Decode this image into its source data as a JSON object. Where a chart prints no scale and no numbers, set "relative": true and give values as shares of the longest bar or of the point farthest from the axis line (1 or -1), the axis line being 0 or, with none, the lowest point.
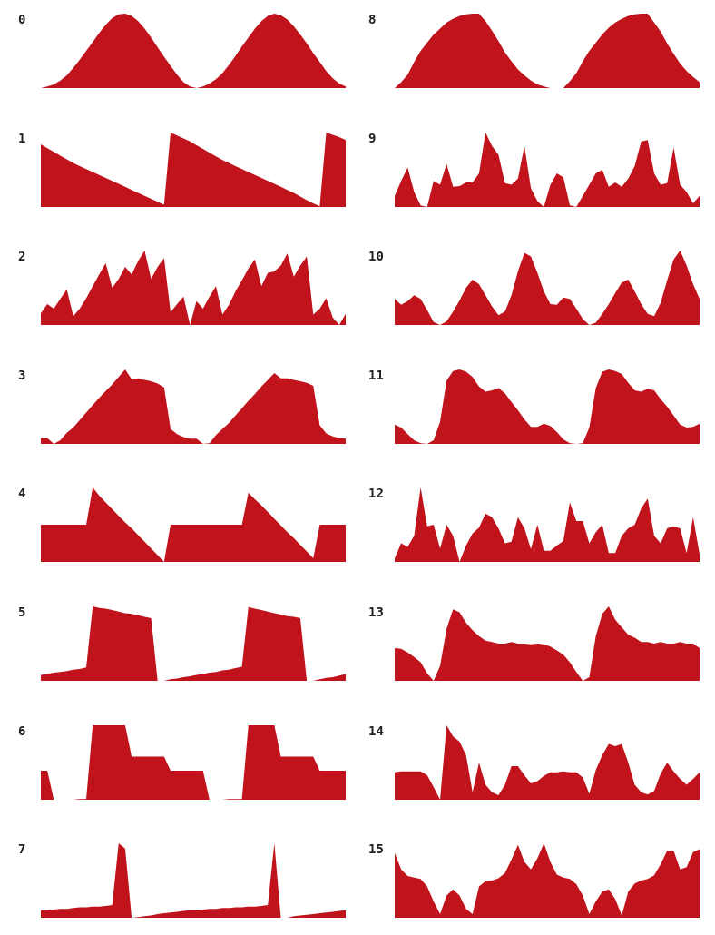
{
  "chart_data": [
    {
      "type": "area",
      "title": "0",
      "relative": true,
      "color": "#c0131c",
      "categories": [
        null,
        null,
        null,
        null,
        null,
        null,
        null,
        null,
        null,
        null,
        null,
        null,
        null,
        null,
        null,
        null,
        null,
        null,
        null,
        null,
        null,
        null,
        null,
        null,
        null,
        null,
        null,
        null,
        null,
        null,
        null,
        null,
        null,
        null,
        null,
        null,
        null,
        null,
        null,
        null,
        null,
        null,
        null,
        null,
        null,
        null,
        null,
        null
      ],
      "values": [
        0,
        0.02,
        0.05,
        0.1,
        0.17,
        0.27,
        0.38,
        0.5,
        0.62,
        0.74,
        0.85,
        0.94,
        0.99,
        1,
        0.97,
        0.9,
        0.8,
        0.68,
        0.55,
        0.42,
        0.3,
        0.18,
        0.08,
        0.02,
        0,
        0.02,
        0.06,
        0.12,
        0.2,
        0.31,
        0.43,
        0.56,
        0.68,
        0.8,
        0.9,
        0.97,
        1,
        0.98,
        0.92,
        0.83,
        0.72,
        0.6,
        0.47,
        0.35,
        0.23,
        0.13,
        0.06,
        0.02
      ]
    },
    {
      "type": "area",
      "title": "1",
      "relative": true,
      "color": "#c0131c",
      "categories": [
        null,
        null,
        null,
        null,
        null,
        null,
        null,
        null,
        null,
        null,
        null,
        null,
        null,
        null,
        null,
        null,
        null,
        null,
        null,
        null,
        null,
        null,
        null,
        null,
        null,
        null,
        null,
        null,
        null,
        null,
        null,
        null,
        null,
        null,
        null,
        null,
        null,
        null,
        null,
        null,
        null,
        null,
        null,
        null,
        null,
        null,
        null,
        null
      ],
      "values": [
        0.84,
        0.79,
        0.74,
        0.69,
        0.64,
        0.59,
        0.55,
        0.51,
        0.47,
        0.43,
        0.39,
        0.35,
        0.31,
        0.27,
        0.23,
        0.19,
        0.15,
        0.11,
        0.07,
        0.03,
        1,
        0.96,
        0.92,
        0.88,
        0.83,
        0.78,
        0.73,
        0.68,
        0.63,
        0.59,
        0.55,
        0.51,
        0.47,
        0.43,
        0.39,
        0.35,
        0.31,
        0.27,
        0.23,
        0.19,
        0.14,
        0.09,
        0.05,
        0.01,
        1,
        0.97,
        0.94,
        0.9
      ]
    },
    {
      "type": "area",
      "title": "2",
      "relative": true,
      "color": "#c0131c",
      "categories": [
        null,
        null,
        null,
        null,
        null,
        null,
        null,
        null,
        null,
        null,
        null,
        null,
        null,
        null,
        null,
        null,
        null,
        null,
        null,
        null,
        null,
        null,
        null,
        null,
        null,
        null,
        null,
        null,
        null,
        null,
        null,
        null,
        null,
        null,
        null,
        null,
        null,
        null,
        null,
        null,
        null,
        null,
        null,
        null,
        null,
        null,
        null,
        null
      ],
      "values": [
        0.16,
        0.28,
        0.22,
        0.35,
        0.48,
        0.12,
        0.22,
        0.36,
        0.52,
        0.68,
        0.83,
        0.5,
        0.62,
        0.78,
        0.68,
        0.86,
        1,
        0.62,
        0.78,
        0.9,
        0.17,
        0.28,
        0.38,
        0,
        0.32,
        0.22,
        0.38,
        0.52,
        0.14,
        0.27,
        0.45,
        0.6,
        0.76,
        0.88,
        0.52,
        0.7,
        0.72,
        0.8,
        0.96,
        0.65,
        0.8,
        0.92,
        0.14,
        0.22,
        0.36,
        0.1,
        0,
        0.15
      ]
    },
    {
      "type": "area",
      "title": "3",
      "relative": true,
      "color": "#c0131c",
      "categories": [
        null,
        null,
        null,
        null,
        null,
        null,
        null,
        null,
        null,
        null,
        null,
        null,
        null,
        null,
        null,
        null,
        null,
        null,
        null,
        null,
        null,
        null,
        null,
        null,
        null,
        null,
        null,
        null,
        null,
        null,
        null,
        null,
        null,
        null,
        null,
        null,
        null,
        null,
        null,
        null,
        null,
        null,
        null,
        null,
        null,
        null,
        null,
        null
      ],
      "values": [
        0.08,
        0.08,
        0,
        0.05,
        0.15,
        0.22,
        0.32,
        0.42,
        0.52,
        0.62,
        0.71,
        0.8,
        0.9,
        1,
        0.87,
        0.88,
        0.86,
        0.84,
        0.81,
        0.76,
        0.2,
        0.13,
        0.09,
        0.07,
        0.07,
        0,
        0.01,
        0.12,
        0.2,
        0.28,
        0.38,
        0.48,
        0.58,
        0.67,
        0.77,
        0.86,
        0.95,
        0.88,
        0.88,
        0.86,
        0.84,
        0.82,
        0.78,
        0.25,
        0.14,
        0.1,
        0.08,
        0.07
      ]
    },
    {
      "type": "area",
      "title": "4",
      "relative": true,
      "color": "#c0131c",
      "categories": [
        null,
        null,
        null,
        null,
        null,
        null,
        null,
        null,
        null,
        null,
        null,
        null,
        null,
        null,
        null,
        null,
        null,
        null,
        null,
        null,
        null,
        null,
        null,
        null,
        null,
        null,
        null,
        null,
        null,
        null,
        null,
        null,
        null,
        null,
        null,
        null,
        null,
        null,
        null,
        null,
        null,
        null,
        null,
        null,
        null,
        null,
        null,
        null
      ],
      "values": [
        0.5,
        0.5,
        0.5,
        0.5,
        0.5,
        0.5,
        0.5,
        0.5,
        1,
        0.89,
        0.8,
        0.71,
        0.62,
        0.53,
        0.45,
        0.36,
        0.27,
        0.18,
        0.09,
        0,
        0.5,
        0.5,
        0.5,
        0.5,
        0.5,
        0.5,
        0.5,
        0.5,
        0.5,
        0.5,
        0.5,
        0.5,
        0.93,
        0.84,
        0.76,
        0.67,
        0.58,
        0.49,
        0.4,
        0.32,
        0.23,
        0.14,
        0.05,
        0.5,
        0.5,
        0.5,
        0.5,
        0.5
      ]
    },
    {
      "type": "area",
      "title": "5",
      "relative": true,
      "color": "#c0131c",
      "categories": [
        null,
        null,
        null,
        null,
        null,
        null,
        null,
        null,
        null,
        null,
        null,
        null,
        null,
        null,
        null,
        null,
        null,
        null,
        null,
        null,
        null,
        null,
        null,
        null,
        null,
        null,
        null,
        null,
        null,
        null,
        null,
        null,
        null,
        null,
        null,
        null,
        null,
        null,
        null,
        null,
        null,
        null,
        null,
        null,
        null,
        null,
        null,
        null
      ],
      "values": [
        0.08,
        0.09,
        0.11,
        0.12,
        0.13,
        0.15,
        0.16,
        0.18,
        1,
        0.98,
        0.97,
        0.95,
        0.93,
        0.91,
        0.9,
        0.88,
        0.86,
        0.84,
        0,
        0,
        0.02,
        0.03,
        0.05,
        0.06,
        0.08,
        0.09,
        0.11,
        0.12,
        0.14,
        0.15,
        0.17,
        0.19,
        0.99,
        0.97,
        0.95,
        0.93,
        0.91,
        0.89,
        0.87,
        0.86,
        0.84,
        0,
        0,
        0.02,
        0.04,
        0.05,
        0.07,
        0.09
      ]
    },
    {
      "type": "area",
      "title": "6",
      "relative": true,
      "color": "#c0131c",
      "categories": [
        null,
        null,
        null,
        null,
        null,
        null,
        null,
        null,
        null,
        null,
        null,
        null,
        null,
        null,
        null,
        null,
        null,
        null,
        null,
        null,
        null,
        null,
        null,
        null,
        null,
        null,
        null,
        null,
        null,
        null,
        null,
        null,
        null,
        null,
        null,
        null,
        null,
        null,
        null,
        null,
        null,
        null,
        null,
        null,
        null,
        null,
        null,
        null
      ],
      "values": [
        0.39,
        0.39,
        0,
        0,
        0,
        0,
        0.01,
        0.01,
        1,
        1,
        1,
        1,
        1,
        1,
        0.58,
        0.58,
        0.58,
        0.58,
        0.58,
        0.58,
        0.39,
        0.39,
        0.39,
        0.39,
        0.39,
        0.39,
        0,
        0,
        0,
        0.01,
        0.01,
        0.01,
        1,
        1,
        1,
        1,
        1,
        0.58,
        0.58,
        0.58,
        0.58,
        0.58,
        0.58,
        0.39,
        0.39,
        0.39,
        0.39,
        0.39
      ]
    },
    {
      "type": "area",
      "title": "7",
      "relative": true,
      "color": "#c0131c",
      "categories": [
        null,
        null,
        null,
        null,
        null,
        null,
        null,
        null,
        null,
        null,
        null,
        null,
        null,
        null,
        null,
        null,
        null,
        null,
        null,
        null,
        null,
        null,
        null,
        null,
        null,
        null,
        null,
        null,
        null,
        null,
        null,
        null,
        null,
        null,
        null,
        null,
        null,
        null,
        null,
        null,
        null,
        null,
        null,
        null,
        null,
        null,
        null,
        null
      ],
      "values": [
        0.1,
        0.1,
        0.11,
        0.12,
        0.12,
        0.13,
        0.14,
        0.14,
        0.15,
        0.15,
        0.16,
        0.17,
        1,
        0.93,
        0,
        0.01,
        0.02,
        0.03,
        0.05,
        0.06,
        0.07,
        0.08,
        0.09,
        0.1,
        0.1,
        0.11,
        0.12,
        0.12,
        0.13,
        0.13,
        0.14,
        0.14,
        0.15,
        0.15,
        0.16,
        0.17,
        1,
        0,
        0,
        0.02,
        0.03,
        0.04,
        0.05,
        0.06,
        0.07,
        0.08,
        0.09,
        0.1
      ]
    },
    {
      "type": "area",
      "title": "8",
      "relative": true,
      "color": "#c0131c",
      "categories": [
        null,
        null,
        null,
        null,
        null,
        null,
        null,
        null,
        null,
        null,
        null,
        null,
        null,
        null,
        null,
        null,
        null,
        null,
        null,
        null,
        null,
        null,
        null,
        null,
        null,
        null,
        null,
        null,
        null,
        null,
        null,
        null,
        null,
        null,
        null,
        null,
        null,
        null,
        null,
        null,
        null,
        null,
        null,
        null,
        null,
        null,
        null,
        null
      ],
      "values": [
        0,
        0.08,
        0.18,
        0.35,
        0.5,
        0.61,
        0.72,
        0.8,
        0.88,
        0.93,
        0.97,
        0.99,
        1,
        1,
        0.9,
        0.77,
        0.63,
        0.48,
        0.36,
        0.25,
        0.17,
        0.1,
        0.05,
        0.02,
        0,
        0,
        0,
        0.09,
        0.2,
        0.36,
        0.5,
        0.61,
        0.72,
        0.81,
        0.88,
        0.93,
        0.97,
        0.99,
        1,
        1,
        0.88,
        0.76,
        0.6,
        0.46,
        0.33,
        0.23,
        0.15,
        0.08
      ]
    },
    {
      "type": "area",
      "title": "9",
      "relative": true,
      "color": "#c0131c",
      "categories": [
        null,
        null,
        null,
        null,
        null,
        null,
        null,
        null,
        null,
        null,
        null,
        null,
        null,
        null,
        null,
        null,
        null,
        null,
        null,
        null,
        null,
        null,
        null,
        null,
        null,
        null,
        null,
        null,
        null,
        null,
        null,
        null,
        null,
        null,
        null,
        null,
        null,
        null,
        null,
        null,
        null,
        null,
        null,
        null,
        null,
        null,
        null,
        null
      ],
      "values": [
        0.15,
        0.35,
        0.53,
        0.2,
        0.02,
        0,
        0.35,
        0.3,
        0.58,
        0.27,
        0.28,
        0.33,
        0.33,
        0.45,
        1,
        0.82,
        0.7,
        0.32,
        0.3,
        0.38,
        0.82,
        0.25,
        0.08,
        0,
        0.3,
        0.45,
        0.4,
        0.02,
        0,
        0.15,
        0.3,
        0.45,
        0.5,
        0.27,
        0.33,
        0.27,
        0.38,
        0.55,
        0.88,
        0.9,
        0.45,
        0.3,
        0.32,
        0.8,
        0.3,
        0.2,
        0.05,
        0.15
      ]
    },
    {
      "type": "area",
      "title": "10",
      "relative": true,
      "color": "#c0131c",
      "categories": [
        null,
        null,
        null,
        null,
        null,
        null,
        null,
        null,
        null,
        null,
        null,
        null,
        null,
        null,
        null,
        null,
        null,
        null,
        null,
        null,
        null,
        null,
        null,
        null,
        null,
        null,
        null,
        null,
        null,
        null,
        null,
        null,
        null,
        null,
        null,
        null,
        null,
        null,
        null,
        null,
        null,
        null,
        null,
        null,
        null,
        null,
        null,
        null
      ],
      "values": [
        0.35,
        0.27,
        0.32,
        0.4,
        0.35,
        0.2,
        0.04,
        0,
        0.05,
        0.18,
        0.33,
        0.5,
        0.61,
        0.55,
        0.4,
        0.25,
        0.13,
        0.18,
        0.4,
        0.72,
        0.97,
        0.92,
        0.7,
        0.45,
        0.28,
        0.27,
        0.37,
        0.35,
        0.22,
        0.08,
        0,
        0.03,
        0.15,
        0.28,
        0.43,
        0.57,
        0.61,
        0.45,
        0.28,
        0.15,
        0.12,
        0.3,
        0.6,
        0.88,
        1,
        0.8,
        0.55,
        0.35
      ]
    },
    {
      "type": "area",
      "title": "11",
      "relative": true,
      "color": "#c0131c",
      "categories": [
        null,
        null,
        null,
        null,
        null,
        null,
        null,
        null,
        null,
        null,
        null,
        null,
        null,
        null,
        null,
        null,
        null,
        null,
        null,
        null,
        null,
        null,
        null,
        null,
        null,
        null,
        null,
        null,
        null,
        null,
        null,
        null,
        null,
        null,
        null,
        null,
        null,
        null,
        null,
        null,
        null,
        null,
        null,
        null,
        null,
        null,
        null,
        null
      ],
      "values": [
        0.26,
        0.22,
        0.13,
        0.05,
        0.01,
        0,
        0.05,
        0.3,
        0.85,
        0.98,
        1,
        0.97,
        0.9,
        0.77,
        0.7,
        0.72,
        0.75,
        0.68,
        0.56,
        0.45,
        0.33,
        0.23,
        0.23,
        0.27,
        0.24,
        0.16,
        0.06,
        0.01,
        0,
        0.01,
        0.22,
        0.75,
        0.97,
        1,
        0.98,
        0.94,
        0.82,
        0.72,
        0.7,
        0.74,
        0.72,
        0.6,
        0.5,
        0.38,
        0.26,
        0.22,
        0.23,
        0.27
      ]
    },
    {
      "type": "area",
      "title": "12",
      "relative": true,
      "color": "#c0131c",
      "categories": [
        null,
        null,
        null,
        null,
        null,
        null,
        null,
        null,
        null,
        null,
        null,
        null,
        null,
        null,
        null,
        null,
        null,
        null,
        null,
        null,
        null,
        null,
        null,
        null,
        null,
        null,
        null,
        null,
        null,
        null,
        null,
        null,
        null,
        null,
        null,
        null,
        null,
        null,
        null,
        null,
        null,
        null,
        null,
        null,
        null,
        null,
        null,
        null
      ],
      "values": [
        0.05,
        0.25,
        0.2,
        0.35,
        1,
        0.48,
        0.5,
        0.18,
        0.5,
        0.35,
        0,
        0.22,
        0.38,
        0.46,
        0.65,
        0.6,
        0.45,
        0.25,
        0.27,
        0.6,
        0.45,
        0.17,
        0.5,
        0.15,
        0.15,
        0.22,
        0.28,
        0.8,
        0.55,
        0.55,
        0.25,
        0.4,
        0.5,
        0.12,
        0.12,
        0.35,
        0.45,
        0.5,
        0.72,
        0.85,
        0.35,
        0.25,
        0.45,
        0.48,
        0.45,
        0.12,
        0.6,
        0.1
      ]
    },
    {
      "type": "area",
      "title": "13",
      "relative": true,
      "color": "#c0131c",
      "categories": [
        null,
        null,
        null,
        null,
        null,
        null,
        null,
        null,
        null,
        null,
        null,
        null,
        null,
        null,
        null,
        null,
        null,
        null,
        null,
        null,
        null,
        null,
        null,
        null,
        null,
        null,
        null,
        null,
        null,
        null,
        null,
        null,
        null,
        null,
        null,
        null,
        null,
        null,
        null,
        null,
        null,
        null,
        null,
        null,
        null,
        null,
        null,
        null
      ],
      "values": [
        0.44,
        0.43,
        0.38,
        0.32,
        0.25,
        0.1,
        0,
        0.2,
        0.7,
        0.96,
        0.92,
        0.78,
        0.68,
        0.6,
        0.54,
        0.52,
        0.5,
        0.5,
        0.52,
        0.5,
        0.5,
        0.49,
        0.5,
        0.49,
        0.46,
        0.41,
        0.35,
        0.25,
        0.12,
        0,
        0.05,
        0.6,
        0.9,
        1,
        0.82,
        0.72,
        0.62,
        0.58,
        0.52,
        0.52,
        0.5,
        0.52,
        0.5,
        0.5,
        0.52,
        0.5,
        0.5,
        0.44
      ]
    },
    {
      "type": "area",
      "title": "14",
      "relative": true,
      "color": "#c0131c",
      "categories": [
        null,
        null,
        null,
        null,
        null,
        null,
        null,
        null,
        null,
        null,
        null,
        null,
        null,
        null,
        null,
        null,
        null,
        null,
        null,
        null,
        null,
        null,
        null,
        null,
        null,
        null,
        null,
        null,
        null,
        null,
        null,
        null,
        null,
        null,
        null,
        null,
        null,
        null,
        null,
        null,
        null,
        null,
        null,
        null,
        null,
        null,
        null,
        null
      ],
      "values": [
        0.37,
        0.38,
        0.38,
        0.38,
        0.38,
        0.33,
        0.17,
        0,
        1,
        0.85,
        0.78,
        0.6,
        0.1,
        0.5,
        0.2,
        0.1,
        0.06,
        0.2,
        0.45,
        0.45,
        0.33,
        0.22,
        0.25,
        0.32,
        0.37,
        0.37,
        0.38,
        0.37,
        0.37,
        0.3,
        0.08,
        0.4,
        0.6,
        0.75,
        0.72,
        0.75,
        0.5,
        0.2,
        0.1,
        0.07,
        0.12,
        0.35,
        0.5,
        0.38,
        0.28,
        0.2,
        0.28,
        0.37
      ]
    },
    {
      "type": "area",
      "title": "15",
      "relative": true,
      "color": "#c0131c",
      "categories": [
        null,
        null,
        null,
        null,
        null,
        null,
        null,
        null,
        null,
        null,
        null,
        null,
        null,
        null,
        null,
        null,
        null,
        null,
        null,
        null,
        null,
        null,
        null,
        null,
        null,
        null,
        null,
        null,
        null,
        null,
        null,
        null,
        null,
        null,
        null,
        null,
        null,
        null,
        null,
        null,
        null,
        null,
        null,
        null,
        null,
        null,
        null,
        null
      ],
      "values": [
        0.87,
        0.65,
        0.56,
        0.54,
        0.52,
        0.42,
        0.22,
        0.05,
        0.3,
        0.38,
        0.3,
        0.12,
        0.05,
        0.42,
        0.49,
        0.5,
        0.53,
        0.6,
        0.78,
        0.98,
        0.75,
        0.65,
        0.8,
        1,
        0.75,
        0.58,
        0.54,
        0.52,
        0.45,
        0.3,
        0.05,
        0.22,
        0.35,
        0.38,
        0.25,
        0.03,
        0.35,
        0.46,
        0.5,
        0.52,
        0.57,
        0.72,
        0.9,
        0.9,
        0.65,
        0.68,
        0.88,
        0.92
      ]
    }
  ]
}
